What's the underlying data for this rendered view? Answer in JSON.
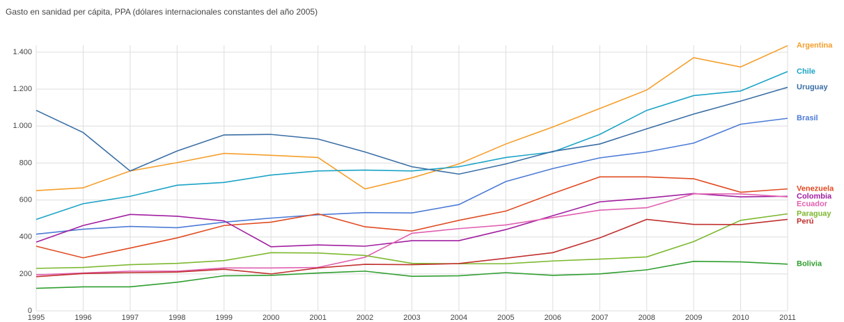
{
  "chart_data": {
    "type": "line",
    "title": "Gasto en sanidad per cápita, PPA (dólares internacionales constantes del año 2005)",
    "x": [
      1995,
      1996,
      1997,
      1998,
      1999,
      2000,
      2001,
      2002,
      2003,
      2004,
      2005,
      2006,
      2007,
      2008,
      2009,
      2010,
      2011
    ],
    "xlim": [
      1995,
      2011
    ],
    "ylim": [
      0,
      1400
    ],
    "yticks": [
      0,
      200,
      400,
      600,
      800,
      {
        "value": 1000,
        "label": "1.000"
      },
      {
        "value": 1200,
        "label": "1.200"
      },
      {
        "value": 1400,
        "label": "1.400"
      }
    ],
    "grid": true,
    "series": [
      {
        "name": "Argentina",
        "color": "#f59e2a",
        "values": [
          651,
          666,
          757,
          802,
          852,
          842,
          830,
          660,
          720,
          795,
          903,
          995,
          1095,
          1195,
          1370,
          1320,
          1435
        ]
      },
      {
        "name": "Chile",
        "color": "#1ba3c6",
        "values": [
          495,
          580,
          620,
          680,
          695,
          735,
          757,
          762,
          757,
          780,
          830,
          860,
          955,
          1085,
          1165,
          1190,
          1295
        ]
      },
      {
        "name": "Uruguay",
        "color": "#3a6ea5",
        "values": [
          1085,
          965,
          757,
          865,
          952,
          955,
          930,
          860,
          780,
          740,
          795,
          863,
          903,
          985,
          1065,
          1135,
          1210
        ]
      },
      {
        "name": "Brasil",
        "color": "#4c7bd6",
        "values": [
          415,
          442,
          457,
          450,
          480,
          502,
          520,
          532,
          530,
          575,
          700,
          770,
          828,
          860,
          908,
          1010,
          1042
        ]
      },
      {
        "name": "Venezuela",
        "color": "#e04b22",
        "values": [
          350,
          287,
          340,
          395,
          462,
          480,
          525,
          455,
          432,
          490,
          540,
          635,
          725,
          725,
          715,
          642,
          660
        ]
      },
      {
        "name": "Colombia",
        "color": "#a01ea0",
        "values": [
          372,
          462,
          522,
          512,
          487,
          347,
          357,
          350,
          380,
          380,
          440,
          515,
          590,
          610,
          635,
          617,
          620
        ]
      },
      {
        "name": "Ecuador",
        "color": "#e05fb0",
        "values": [
          195,
          205,
          215,
          215,
          232,
          232,
          235,
          290,
          420,
          445,
          465,
          505,
          545,
          558,
          633,
          633,
          617
        ]
      },
      {
        "name": "Paraguay",
        "color": "#7cb82f",
        "values": [
          230,
          235,
          250,
          257,
          272,
          315,
          313,
          300,
          257,
          255,
          255,
          270,
          280,
          292,
          375,
          490,
          525
        ]
      },
      {
        "name": "Perú",
        "color": "#c0302e",
        "values": [
          185,
          202,
          207,
          210,
          225,
          200,
          232,
          252,
          250,
          256,
          285,
          315,
          395,
          495,
          468,
          467,
          495
        ]
      },
      {
        "name": "Bolivia",
        "color": "#2e9e2e",
        "values": [
          122,
          130,
          130,
          155,
          190,
          192,
          205,
          215,
          187,
          190,
          207,
          192,
          200,
          222,
          268,
          265,
          253
        ]
      }
    ]
  }
}
